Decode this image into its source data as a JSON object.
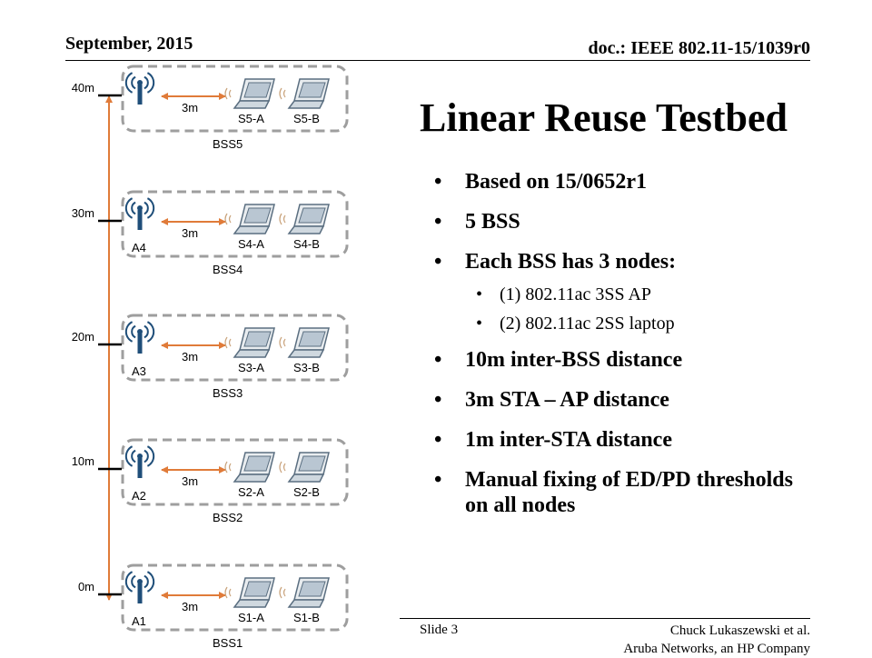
{
  "header": {
    "date": "September, 2015",
    "doc": "doc.: IEEE 802.11-15/1039r0"
  },
  "title": "Linear Reuse Testbed",
  "bullets": [
    {
      "level": 1,
      "text": "Based on 15/0652r1"
    },
    {
      "level": 1,
      "text": "5 BSS"
    },
    {
      "level": 1,
      "text": "Each BSS has 3 nodes:"
    },
    {
      "level": 2,
      "text": "(1) 802.11ac 3SS AP"
    },
    {
      "level": 2,
      "text": "(2) 802.11ac 2SS laptop"
    },
    {
      "level": 1,
      "text": "10m inter-BSS distance"
    },
    {
      "level": 1,
      "text": "3m STA – AP distance"
    },
    {
      "level": 1,
      "text": "1m inter-STA distance"
    },
    {
      "level": 1,
      "text": "Manual fixing of ED/PD thresholds on all nodes"
    }
  ],
  "footer": {
    "slide": "Slide 3",
    "author_line1": "Chuck Lukaszewski et al.",
    "author_line2": "Aruba Networks, an HP Company"
  },
  "diagram": {
    "colors": {
      "arrow": "#e07b39",
      "box": "#9e9e9e",
      "ap": "#1f4e79",
      "laptop": "#5a6e80"
    },
    "bss": [
      {
        "name": "BSS5",
        "distance": "40m",
        "ap": "",
        "sta_a": "S5-A",
        "sta_b": "S5-B",
        "spacing": "3m"
      },
      {
        "name": "BSS4",
        "distance": "30m",
        "ap": "A4",
        "sta_a": "S4-A",
        "sta_b": "S4-B",
        "spacing": "3m"
      },
      {
        "name": "BSS3",
        "distance": "20m",
        "ap": "A3",
        "sta_a": "S3-A",
        "sta_b": "S3-B",
        "spacing": "3m"
      },
      {
        "name": "BSS2",
        "distance": "10m",
        "ap": "A2",
        "sta_a": "S2-A",
        "sta_b": "S2-B",
        "spacing": "3m"
      },
      {
        "name": "BSS1",
        "distance": "0m",
        "ap": "A1",
        "sta_a": "S1-A",
        "sta_b": "S1-B",
        "spacing": "3m"
      }
    ]
  }
}
